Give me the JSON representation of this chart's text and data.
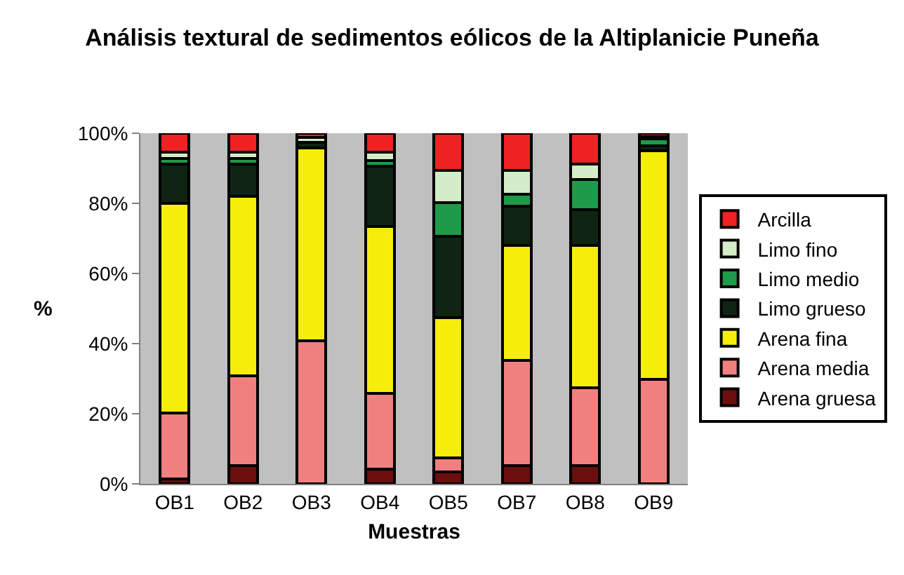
{
  "chart_data": {
    "type": "bar",
    "title": "Análisis textural de sedimentos eólicos de la Altiplanicie Puneña",
    "xlabel": "Muestras",
    "ylabel": "%",
    "categories": [
      "OB1",
      "OB2",
      "OB3",
      "OB4",
      "OB5",
      "OB7",
      "OB8",
      "OB9"
    ],
    "stacked": true,
    "legend": "right",
    "grid": false,
    "ylim": [
      0,
      100
    ],
    "yticks": [
      {
        "value": 0,
        "label": "0%"
      },
      {
        "value": 20,
        "label": "20%"
      },
      {
        "value": 40,
        "label": "40%"
      },
      {
        "value": 60,
        "label": "60%"
      },
      {
        "value": 80,
        "label": "80%"
      },
      {
        "value": 100,
        "label": "100%"
      }
    ],
    "series": [
      {
        "name": "Arena gruesa",
        "color": "#6b0e0e",
        "values": [
          1.5,
          5.3,
          0,
          4.2,
          3.5,
          5.3,
          5.3,
          0
        ]
      },
      {
        "name": "Arena media",
        "color": "#f08080",
        "values": [
          18.8,
          25.5,
          40.9,
          21.7,
          4.0,
          30,
          22.2,
          29.8
        ]
      },
      {
        "name": "Arena fina",
        "color": "#f5ee0a",
        "values": [
          59.7,
          51.2,
          55,
          47.5,
          39.9,
          32.7,
          40.5,
          65.2
        ]
      },
      {
        "name": "Limo grueso",
        "color": "#0f2412",
        "values": [
          11.3,
          9.3,
          1.5,
          17.3,
          23.3,
          11.2,
          10.2,
          1.5
        ]
      },
      {
        "name": "Limo medio",
        "color": "#1f9a4a",
        "values": [
          1.5,
          1.5,
          0,
          1.5,
          9.5,
          3.5,
          8.6,
          2
        ]
      },
      {
        "name": "Limo fino",
        "color": "#d4ecc8",
        "values": [
          1.8,
          1.8,
          1.5,
          2.5,
          9.3,
          6.8,
          4.5,
          0.5
        ]
      },
      {
        "name": "Arcilla",
        "color": "#ee2222",
        "values": [
          5.4,
          5.4,
          1.1,
          5.3,
          10.5,
          10.5,
          8.7,
          1
        ]
      }
    ]
  }
}
